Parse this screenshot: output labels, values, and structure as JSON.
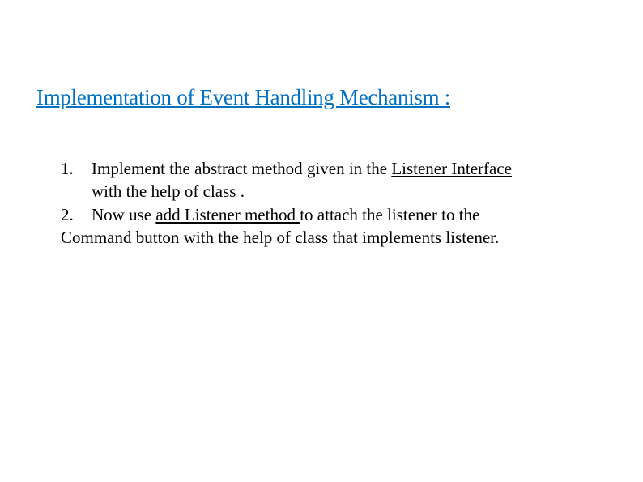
{
  "title": "Implementation of  Event Handling Mechanism :",
  "items": [
    {
      "marker": "1.",
      "text_start": "Implement the abstract method given in the ",
      "underlined": "Listener Interface",
      "line2": "with the help of class ."
    },
    {
      "marker": "2.",
      "text_start": "Now  use ",
      "underlined": "add Listener method ",
      "text_after": "to attach the listener to the",
      "line2": "Command button with the help of class that implements listener."
    }
  ],
  "colors": {
    "title_color": "#0070c0",
    "text_color": "#000000",
    "background_color": "#ffffff"
  },
  "typography": {
    "title_fontsize": 27,
    "body_fontsize": 21,
    "font_family": "Times New Roman"
  }
}
